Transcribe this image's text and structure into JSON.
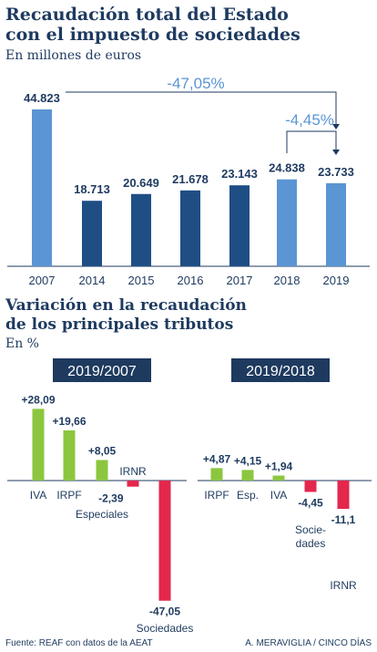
{
  "colors": {
    "navy": "#1e3a5f",
    "light_blue": "#5b95d3",
    "dark_blue": "#1f4e85",
    "green": "#8cc63f",
    "red": "#e4274c",
    "tag_bg": "#1e3a5f"
  },
  "chart_data": [
    {
      "type": "bar",
      "title": "Recaudación total del Estado con el impuesto de sociedades",
      "title_lines": [
        "Recaudación total del Estado",
        "con el impuesto de sociedades"
      ],
      "subtitle": "En millones de euros",
      "categories": [
        "2007",
        "2014",
        "2015",
        "2016",
        "2017",
        "2018",
        "2019"
      ],
      "values": [
        44823,
        18713,
        20649,
        21678,
        23143,
        24838,
        23733
      ],
      "value_labels": [
        "44.823",
        "18.713",
        "20.649",
        "21.678",
        "23.143",
        "24.838",
        "23.733"
      ],
      "highlighted_years": [
        "2007",
        "2018",
        "2019"
      ],
      "ylim": [
        0,
        45000
      ],
      "annotations": [
        {
          "text": "-47,05%",
          "from": "2007",
          "to": "2019"
        },
        {
          "text": "-4,45%",
          "from": "2018",
          "to": "2019"
        }
      ]
    },
    {
      "type": "bar",
      "title": "Variación en la recaudación de los principales tributos",
      "title_lines": [
        "Variación en la recaudación",
        "de los principales tributos"
      ],
      "subtitle": "En %",
      "panels": [
        {
          "name": "2019/2007",
          "categories": [
            "IVA",
            "IRPF",
            "Especiales",
            "IRNR",
            "Sociedades"
          ],
          "values": [
            28.09,
            19.66,
            8.05,
            -2.39,
            -47.05
          ],
          "value_labels": [
            "+28,09",
            "+19,66",
            "+8,05",
            "-2,39",
            "-47,05"
          ]
        },
        {
          "name": "2019/2018",
          "categories": [
            "IRPF",
            "Esp.",
            "IVA",
            "Sociedades",
            "IRNR"
          ],
          "category_lines": [
            [
              "IRPF"
            ],
            [
              "Esp."
            ],
            [
              "IVA"
            ],
            [
              "Socie-",
              "dades"
            ],
            [
              "IRNR"
            ]
          ],
          "values": [
            4.87,
            4.15,
            1.94,
            -4.45,
            -11.1
          ],
          "value_labels": [
            "+4,87",
            "+4,15",
            "+1,94",
            "-4,45",
            "-11,1"
          ]
        }
      ]
    }
  ],
  "footer": {
    "source": "Fuente: REAF con datos de la AEAT",
    "credit": "A. MERAVIGLIA / CINCO DÍAS"
  }
}
